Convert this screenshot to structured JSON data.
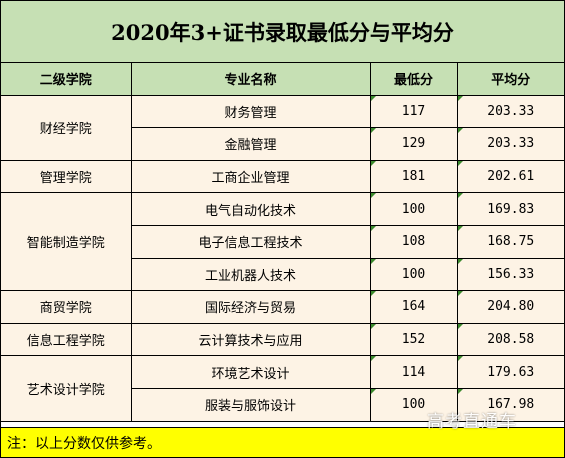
{
  "title": "2020年3+证书录取最低分与平均分",
  "headers": {
    "college": "二级学院",
    "major": "专业名称",
    "min": "最低分",
    "avg": "平均分"
  },
  "colleges": [
    {
      "name": "财经学院"
    },
    {
      "name": "管理学院"
    },
    {
      "name": "智能制造学院"
    },
    {
      "name": "商贸学院"
    },
    {
      "name": "信息工程学院"
    },
    {
      "name": "艺术设计学院"
    }
  ],
  "rows": [
    {
      "major": "财务管理",
      "min": "117",
      "avg": "203.33"
    },
    {
      "major": "金融管理",
      "min": "129",
      "avg": "203.33"
    },
    {
      "major": "工商企业管理",
      "min": "181",
      "avg": "202.61"
    },
    {
      "major": "电气自动化技术",
      "min": "100",
      "avg": "169.83"
    },
    {
      "major": "电子信息工程技术",
      "min": "108",
      "avg": "168.75"
    },
    {
      "major": "工业机器人技术",
      "min": "100",
      "avg": "156.33"
    },
    {
      "major": "国际经济与贸易",
      "min": "164",
      "avg": "204.80"
    },
    {
      "major": "云计算技术与应用",
      "min": "152",
      "avg": "208.58"
    },
    {
      "major": "环境艺术设计",
      "min": "114",
      "avg": "179.63"
    },
    {
      "major": "服装与服饰设计",
      "min": "100",
      "avg": "167.98"
    }
  ],
  "note": "注：以上分数仅供参考。",
  "watermark": "高考直通车",
  "colors": {
    "header_bg": "#c6e0b4",
    "cell_bg": "#fdf3e5",
    "note_bg": "#ffff00",
    "corner_marker": "#3c8a2e"
  }
}
